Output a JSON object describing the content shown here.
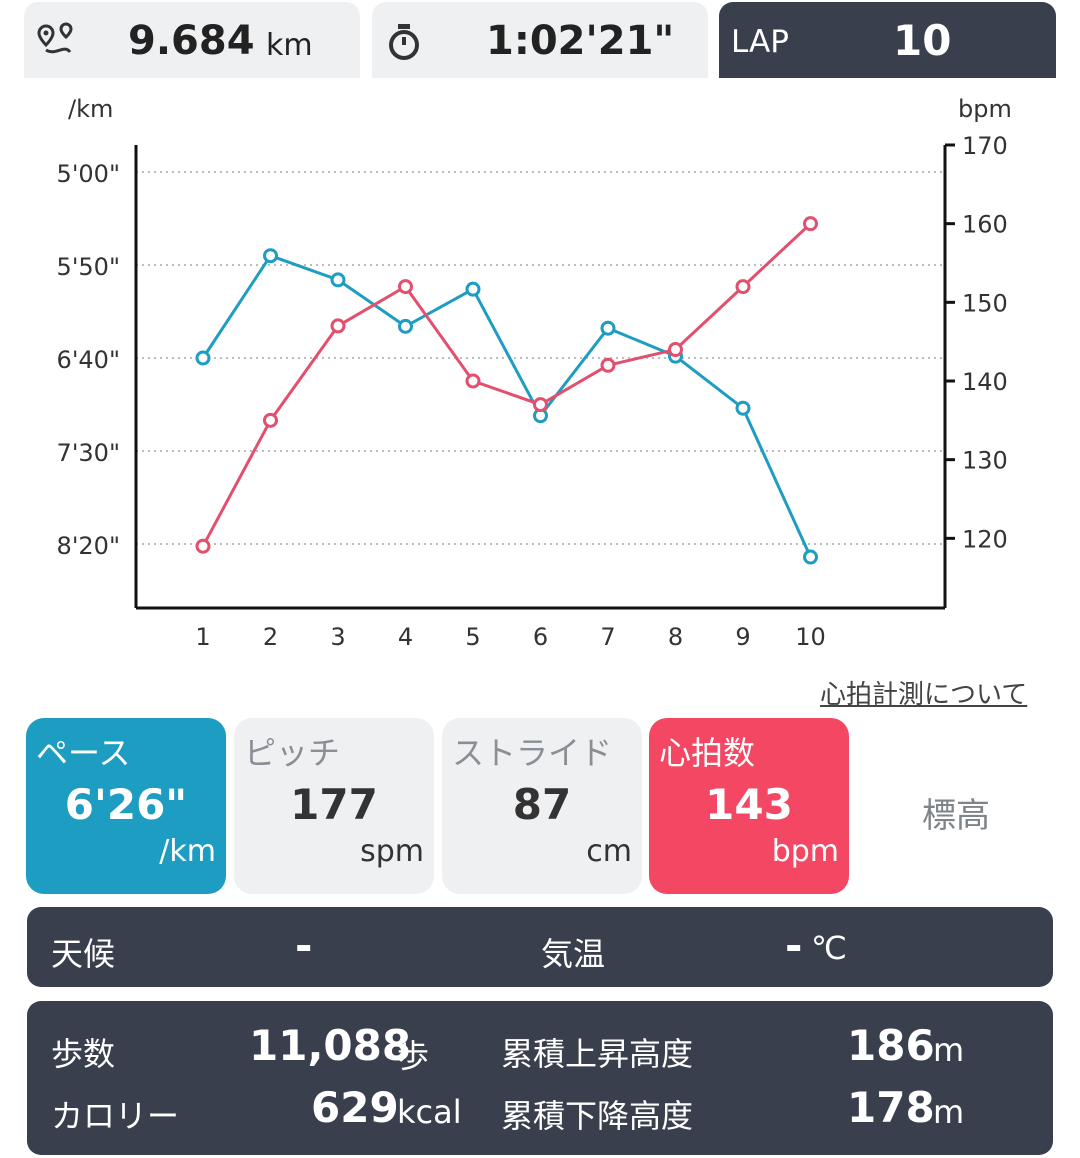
{
  "header": {
    "distance": {
      "value": "9.684",
      "unit": "km",
      "icon": "route-pin-icon"
    },
    "time": {
      "value": "1:02'21\"",
      "icon": "stopwatch-icon"
    },
    "lap": {
      "label": "LAP",
      "value": "10"
    }
  },
  "chart_data": {
    "type": "line",
    "categories": [
      "1",
      "2",
      "3",
      "4",
      "5",
      "6",
      "7",
      "8",
      "9",
      "10"
    ],
    "left_unit": "/km",
    "right_unit": "bpm",
    "left_ticks": [
      "5'00\"",
      "5'50\"",
      "6'40\"",
      "7'30\"",
      "8'20\""
    ],
    "right_ticks": [
      "170",
      "160",
      "150",
      "140",
      "130",
      "120"
    ],
    "right_lim": [
      110,
      170
    ],
    "series": [
      {
        "color": "#1e9dc2",
        "axis": "left",
        "values_sec_per_km": [
          400,
          345,
          358,
          383,
          363,
          431,
          384,
          399,
          427,
          507
        ]
      },
      {
        "color": "#e2506e",
        "axis": "right",
        "values": [
          119,
          135,
          147,
          152,
          140,
          137,
          142,
          144,
          152,
          160
        ]
      }
    ],
    "grid": true
  },
  "links": {
    "hr_info": "心拍計測について"
  },
  "tiles": [
    {
      "label": "ペース",
      "value": "6'26\"",
      "unit": "/km"
    },
    {
      "label": "ピッチ",
      "value": "177",
      "unit": "spm"
    },
    {
      "label": "ストライド",
      "value": "87",
      "unit": "cm"
    },
    {
      "label": "心拍数",
      "value": "143",
      "unit": "bpm"
    },
    {
      "label": "標高"
    }
  ],
  "weather": {
    "label": "天候",
    "value": "-",
    "temp_label": "気温",
    "temp_value": "-",
    "temp_unit": "℃"
  },
  "stats": {
    "steps": {
      "label": "歩数",
      "value": "11,088",
      "unit": "歩"
    },
    "calories": {
      "label": "カロリー",
      "value": "629",
      "unit": "kcal"
    },
    "ascent": {
      "label": "累積上昇高度",
      "value": "186",
      "unit": "m"
    },
    "descent": {
      "label": "累積下降高度",
      "value": "178",
      "unit": "m"
    }
  },
  "colors": {
    "pace": "#1e9dc2",
    "heart": "#f34763",
    "dark_panel": "#3a3f4d",
    "light_box": "#eef0f2"
  }
}
